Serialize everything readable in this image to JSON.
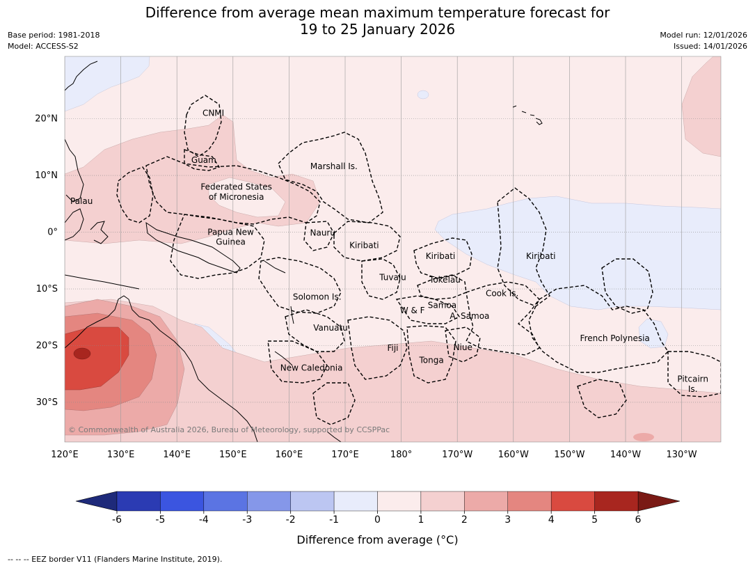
{
  "title": {
    "line1": "Difference from average mean maximum temperature forecast for",
    "line2": "19 to 25 January 2026"
  },
  "meta": {
    "base_period": "Base period: 1981-2018",
    "model": "Model: ACCESS-S2",
    "model_run": "Model run: 12/01/2026",
    "issued": "Issued: 14/01/2026"
  },
  "map": {
    "lon_range": [
      120,
      237
    ],
    "lat_range": [
      -37,
      31
    ],
    "lon_ticks": [
      {
        "value": 120,
        "label": "120°E"
      },
      {
        "value": 130,
        "label": "130°E"
      },
      {
        "value": 140,
        "label": "140°E"
      },
      {
        "value": 150,
        "label": "150°E"
      },
      {
        "value": 160,
        "label": "160°E"
      },
      {
        "value": 170,
        "label": "170°E"
      },
      {
        "value": 180,
        "label": "180°"
      },
      {
        "value": 190,
        "label": "170°W"
      },
      {
        "value": 200,
        "label": "160°W"
      },
      {
        "value": 210,
        "label": "150°W"
      },
      {
        "value": 220,
        "label": "140°W"
      },
      {
        "value": 230,
        "label": "130°W"
      }
    ],
    "lat_ticks": [
      {
        "value": 20,
        "label": "20°N"
      },
      {
        "value": 10,
        "label": "10°N"
      },
      {
        "value": 0,
        "label": "0°"
      },
      {
        "value": -10,
        "label": "10°S"
      },
      {
        "value": -20,
        "label": "20°S"
      },
      {
        "value": -30,
        "label": "30°S"
      }
    ],
    "regions": [
      {
        "name": "CNMI",
        "lon": 146.5,
        "lat": 21
      },
      {
        "name": "Guam",
        "lon": 144.8,
        "lat": 12.7
      },
      {
        "name": "Marshall Is.",
        "lon": 168,
        "lat": 11.6
      },
      {
        "name": "Federated States",
        "lon": 150.6,
        "lat": 8
      },
      {
        "name": "of Micronesia",
        "lon": 150.6,
        "lat": 6.2
      },
      {
        "name": "Palau",
        "lon": 123.0,
        "lat": 5.5
      },
      {
        "name": "Papua New",
        "lon": 149.6,
        "lat": 0
      },
      {
        "name": "Guinea",
        "lon": 149.6,
        "lat": -1.7
      },
      {
        "name": "Nauru",
        "lon": 166.0,
        "lat": -0.1
      },
      {
        "name": "Kiribati",
        "lon": 173.4,
        "lat": -2.3
      },
      {
        "name": "Kiribati",
        "lon": 187.0,
        "lat": -4.2
      },
      {
        "name": "Kiribati",
        "lon": 204.9,
        "lat": -4.2
      },
      {
        "name": "Tuvalu",
        "lon": 178.5,
        "lat": -8.0
      },
      {
        "name": "Tokelau",
        "lon": 187.8,
        "lat": -8.4
      },
      {
        "name": "Solomon Is.",
        "lon": 165.0,
        "lat": -11.4
      },
      {
        "name": "Cook Is.",
        "lon": 198.0,
        "lat": -10.8
      },
      {
        "name": "Samoa",
        "lon": 187.3,
        "lat": -12.9
      },
      {
        "name": "W & F",
        "lon": 182.0,
        "lat": -13.8
      },
      {
        "name": "A. Samoa",
        "lon": 192.2,
        "lat": -14.8
      },
      {
        "name": "Vanuatu",
        "lon": 167.4,
        "lat": -16.9
      },
      {
        "name": "French Polynesia",
        "lon": 218.1,
        "lat": -18.7
      },
      {
        "name": "Fiji",
        "lon": 178.5,
        "lat": -20.4
      },
      {
        "name": "Niue",
        "lon": 191.0,
        "lat": -20.3
      },
      {
        "name": "Tonga",
        "lon": 185.4,
        "lat": -22.6
      },
      {
        "name": "New Caledonia",
        "lon": 164.0,
        "lat": -23.9
      },
      {
        "name": "Pitcairn",
        "lon": 232.0,
        "lat": -25.9
      },
      {
        "name": "Is.",
        "lon": 232.0,
        "lat": -27.7
      }
    ],
    "copyright": "© Commonwealth of Australia 2026, Bureau of Meteorology, supported by CCSPPac"
  },
  "colorbar": {
    "ticks": [
      "-6",
      "-5",
      "-4",
      "-3",
      "-2",
      "-1",
      "0",
      "1",
      "2",
      "3",
      "4",
      "5",
      "6"
    ],
    "colors": [
      "#2b3bb3",
      "#3b55e0",
      "#5b74e3",
      "#8597e9",
      "#bcc6f2",
      "#e8ecfb",
      "#fbecec",
      "#f4d0d0",
      "#ecaaa8",
      "#e48680",
      "#d94a40",
      "#a8261f"
    ],
    "under_color": "#1e2a7a",
    "over_color": "#7a1a15",
    "label": "Difference from average (°C)"
  },
  "footnote": "--  --  -- EEZ border V11 (Flanders Marine Institute, 2019)."
}
